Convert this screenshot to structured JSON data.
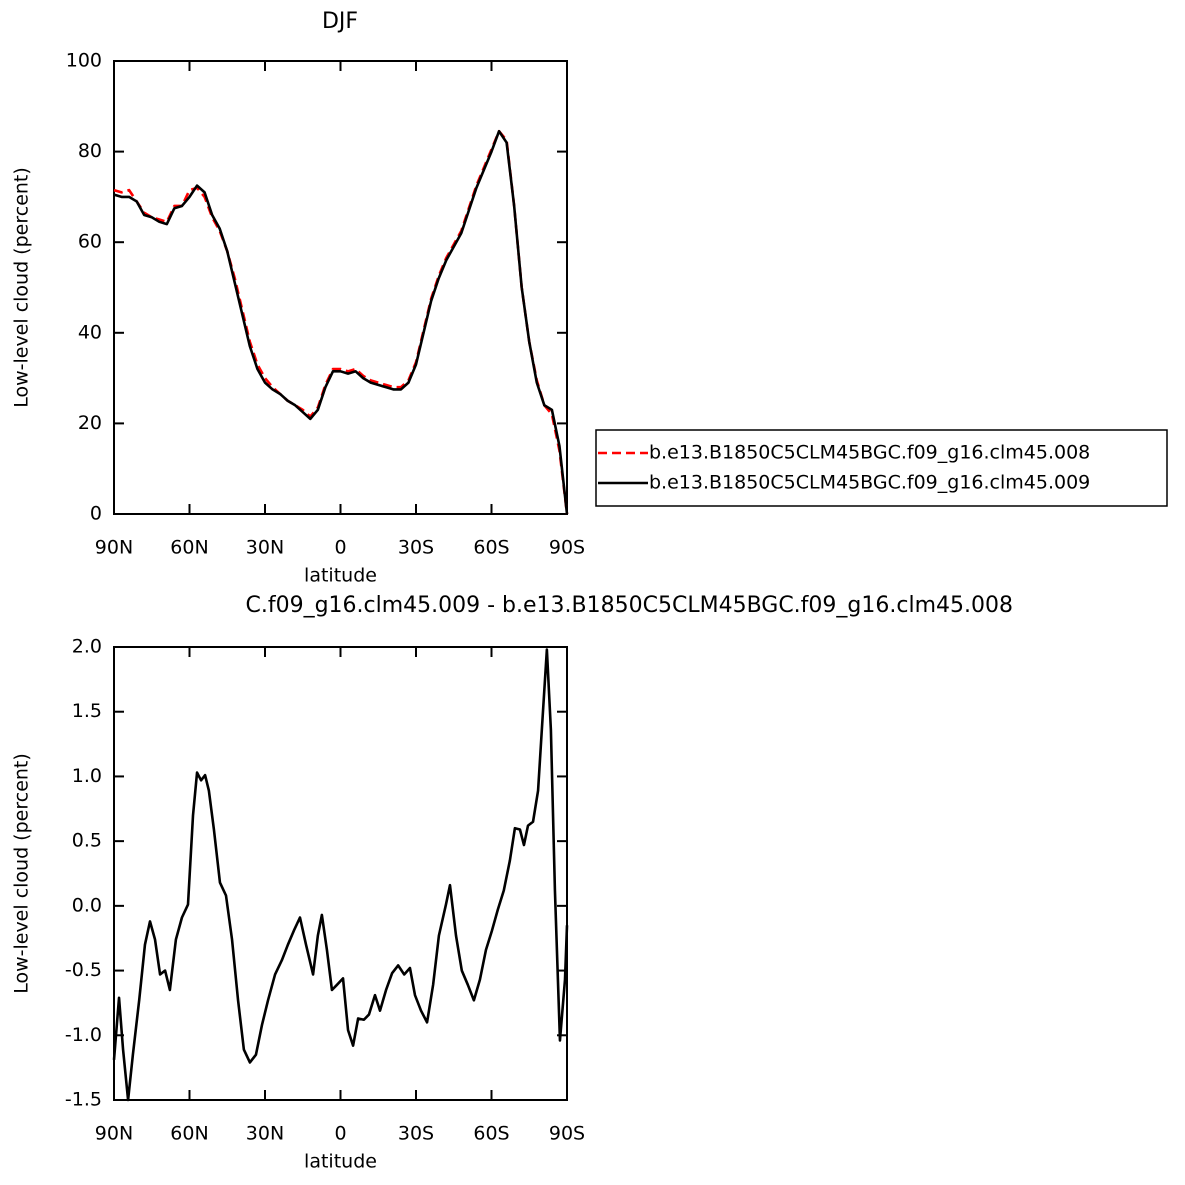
{
  "chart_data": [
    {
      "type": "line",
      "title": "DJF",
      "xlabel": "latitude",
      "ylabel": "Low-level cloud (percent)",
      "x": [
        90,
        87,
        84,
        81,
        78,
        75,
        72,
        69,
        66,
        63,
        60,
        57,
        54,
        51,
        48,
        45,
        42,
        39,
        36,
        33,
        30,
        27,
        24,
        21,
        18,
        15,
        12,
        9,
        6,
        3,
        0,
        -3,
        -6,
        -9,
        -12,
        -15,
        -18,
        -21,
        -24,
        -27,
        -30,
        -33,
        -36,
        -39,
        -42,
        -45,
        -48,
        -51,
        -54,
        -57,
        -60,
        -63,
        -66,
        -69,
        -72,
        -75,
        -78,
        -81,
        -84,
        -87,
        -90
      ],
      "series": [
        {
          "name": "b.e13.B1850C5CLM45BGC.f09_g16.clm45.008",
          "color": "#ff0000",
          "dashed": true,
          "values": [
            71.5,
            71,
            71.5,
            69,
            66.5,
            65.5,
            65,
            64.5,
            68,
            68,
            71.5,
            72,
            70,
            65.5,
            62.5,
            58,
            52,
            45,
            38,
            33,
            30,
            28,
            26.5,
            25,
            24,
            23,
            21.5,
            23.5,
            28.5,
            32,
            32,
            31.5,
            32,
            30.5,
            29.5,
            29,
            28.5,
            28,
            28,
            29.5,
            33.5,
            40.5,
            47.5,
            52.5,
            56.5,
            59.5,
            62.5,
            67.5,
            72.5,
            76.5,
            80.5,
            84.5,
            82.5,
            68,
            50,
            38,
            29.5,
            24,
            22,
            14,
            0
          ]
        },
        {
          "name": "b.e13.B1850C5CLM45BGC.f09_g16.clm45.009",
          "color": "#000000",
          "dashed": false,
          "values": [
            70.5,
            70,
            70,
            69,
            66,
            65.5,
            64.5,
            64,
            67.5,
            68,
            70,
            72.5,
            71,
            66,
            63,
            58,
            51,
            44,
            37,
            32,
            29,
            27.5,
            26.5,
            25,
            24,
            22.5,
            21,
            23,
            28,
            31.5,
            31.5,
            31,
            31.5,
            30,
            29,
            28.5,
            28,
            27.5,
            27.5,
            29,
            33,
            40,
            47,
            52,
            56,
            59,
            62,
            67,
            72,
            76,
            80,
            84.5,
            82,
            68,
            50,
            38,
            29,
            24,
            23,
            15,
            0
          ]
        }
      ],
      "xlim": [
        90,
        -90
      ],
      "ylim": [
        0,
        100
      ],
      "xticks": [
        {
          "value": 90,
          "label": "90N"
        },
        {
          "value": 60,
          "label": "60N"
        },
        {
          "value": 30,
          "label": "30N"
        },
        0,
        {
          "value": -30,
          "label": "30S"
        },
        {
          "value": -60,
          "label": "60S"
        },
        {
          "value": -90,
          "label": "90S"
        }
      ],
      "yticks": [
        0,
        20,
        40,
        60,
        80,
        100
      ],
      "legend": "right"
    },
    {
      "type": "line",
      "title": "C.f09_g16.clm45.009 - b.e13.B1850C5CLM45BGC.f09_g16.clm45.008",
      "xlabel": "latitude",
      "ylabel": "Low-level cloud (percent)",
      "x": [
        90,
        88,
        86.4,
        84.4,
        82.5,
        80,
        77.7,
        75.7,
        73.7,
        71.7,
        69.7,
        67.8,
        65.4,
        63,
        60.6,
        58.6,
        57,
        55.4,
        53.8,
        52.3,
        50.3,
        47.9,
        45.5,
        43.1,
        40.7,
        38.4,
        36,
        33.6,
        31.2,
        28.8,
        26,
        23.3,
        20.9,
        18.5,
        16.1,
        13.7,
        10.9,
        9,
        7.4,
        5.4,
        3.4,
        1.4,
        -1,
        -3,
        -5,
        -7,
        -9.3,
        -11.3,
        -13.7,
        -15.7,
        -18.1,
        -20.5,
        -22.9,
        -25.3,
        -27.6,
        -29.6,
        -32,
        -34.4,
        -36.8,
        -39.1,
        -41.9,
        -43.5,
        -45.9,
        -48.2,
        -50.6,
        -53,
        -55.4,
        -57.8,
        -60.2,
        -62.5,
        -64.9,
        -67.3,
        -69.3,
        -71.3,
        -72.9,
        -74.5,
        -76.5,
        -78.5,
        -80,
        -82,
        -83.6,
        -85.2,
        -87.2,
        -89.2,
        -90
      ],
      "series": [
        {
          "color": "#000000",
          "dashed": false,
          "values": [
            -1.19,
            -0.71,
            -1.11,
            -1.5,
            -1.15,
            -0.73,
            -0.3,
            -0.12,
            -0.26,
            -0.53,
            -0.5,
            -0.65,
            -0.26,
            -0.09,
            0.01,
            0.7,
            1.03,
            0.97,
            1.01,
            0.89,
            0.59,
            0.18,
            0.08,
            -0.26,
            -0.73,
            -1.11,
            -1.21,
            -1.15,
            -0.92,
            -0.73,
            -0.53,
            -0.42,
            -0.3,
            -0.19,
            -0.09,
            -0.3,
            -0.53,
            -0.23,
            -0.07,
            -0.34,
            -0.65,
            -0.61,
            -0.56,
            -0.96,
            -1.08,
            -0.87,
            -0.88,
            -0.84,
            -0.69,
            -0.81,
            -0.65,
            -0.52,
            -0.46,
            -0.53,
            -0.48,
            -0.69,
            -0.81,
            -0.9,
            -0.61,
            -0.23,
            0.01,
            0.16,
            -0.23,
            -0.5,
            -0.61,
            -0.73,
            -0.57,
            -0.34,
            -0.19,
            -0.03,
            0.12,
            0.35,
            0.6,
            0.59,
            0.47,
            0.62,
            0.65,
            0.89,
            1.36,
            1.98,
            1.36,
            0.12,
            -1.04,
            -0.57,
            -0.15
          ]
        }
      ],
      "xlim": [
        90,
        -90
      ],
      "ylim": [
        -1.5,
        2
      ],
      "xticks": [
        {
          "value": 90,
          "label": "90N"
        },
        {
          "value": 60,
          "label": "60N"
        },
        {
          "value": 30,
          "label": "30N"
        },
        0,
        {
          "value": -30,
          "label": "30S"
        },
        {
          "value": -60,
          "label": "60S"
        },
        {
          "value": -90,
          "label": "90S"
        }
      ],
      "yticks": [
        -1.5,
        {
          "value": -1,
          "label": "-1.0"
        },
        -0.5,
        {
          "value": 0,
          "label": "0.0"
        },
        0.5,
        {
          "value": 1,
          "label": "1.0"
        },
        1.5,
        {
          "value": 2,
          "label": "2.0"
        }
      ]
    }
  ]
}
